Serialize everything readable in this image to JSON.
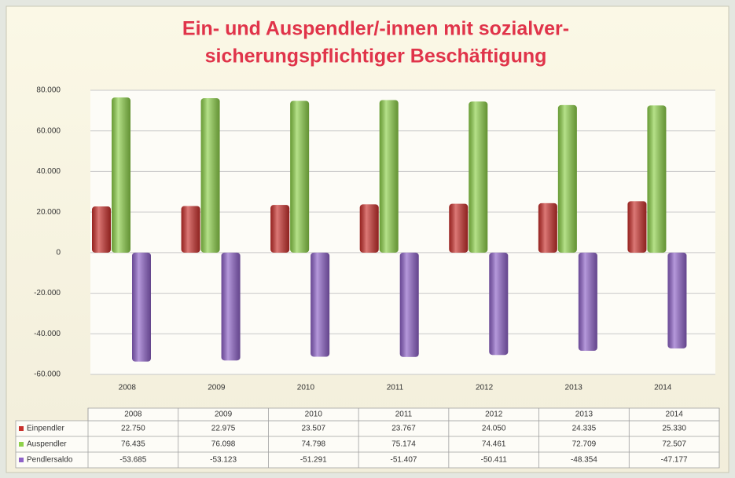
{
  "chart_data": {
    "type": "bar",
    "title": [
      "Ein- und Auspendler/-innen mit sozialver-",
      "sicherungspflichtiger Beschäftigung"
    ],
    "categories": [
      "2008",
      "2009",
      "2010",
      "2011",
      "2012",
      "2013",
      "2014"
    ],
    "series": [
      {
        "name": "Einpendler",
        "color": "#c9302c",
        "values": [
          22750,
          22975,
          23507,
          23767,
          24050,
          24335,
          25330
        ],
        "value_labels": [
          "22.750",
          "22.975",
          "23.507",
          "23.767",
          "24.050",
          "24.335",
          "25.330"
        ]
      },
      {
        "name": "Auspendler",
        "color": "#8ed14a",
        "values": [
          76435,
          76098,
          74798,
          75174,
          74461,
          72709,
          72507
        ],
        "value_labels": [
          "76.435",
          "76.098",
          "74.798",
          "75.174",
          "74.461",
          "72.709",
          "72.507"
        ]
      },
      {
        "name": "Pendlersaldo",
        "color": "#8e62c8",
        "values": [
          -53685,
          -53123,
          -51291,
          -51407,
          -50411,
          -48354,
          -47177
        ],
        "value_labels": [
          "-53.685",
          "-53.123",
          "-51.291",
          "-51.407",
          "-50.411",
          "-48.354",
          "-47.177"
        ]
      }
    ],
    "ylim": [
      -60000,
      80000
    ],
    "yticks": [
      {
        "value": -60000,
        "label": "-60.000"
      },
      {
        "value": -40000,
        "label": "-40.000"
      },
      {
        "value": -20000,
        "label": "-20.000"
      },
      0,
      {
        "value": 20000,
        "label": "20.000"
      },
      {
        "value": 40000,
        "label": "40.000"
      },
      {
        "value": 60000,
        "label": "60.000"
      },
      {
        "value": 80000,
        "label": "80.000"
      }
    ],
    "grid": true
  }
}
